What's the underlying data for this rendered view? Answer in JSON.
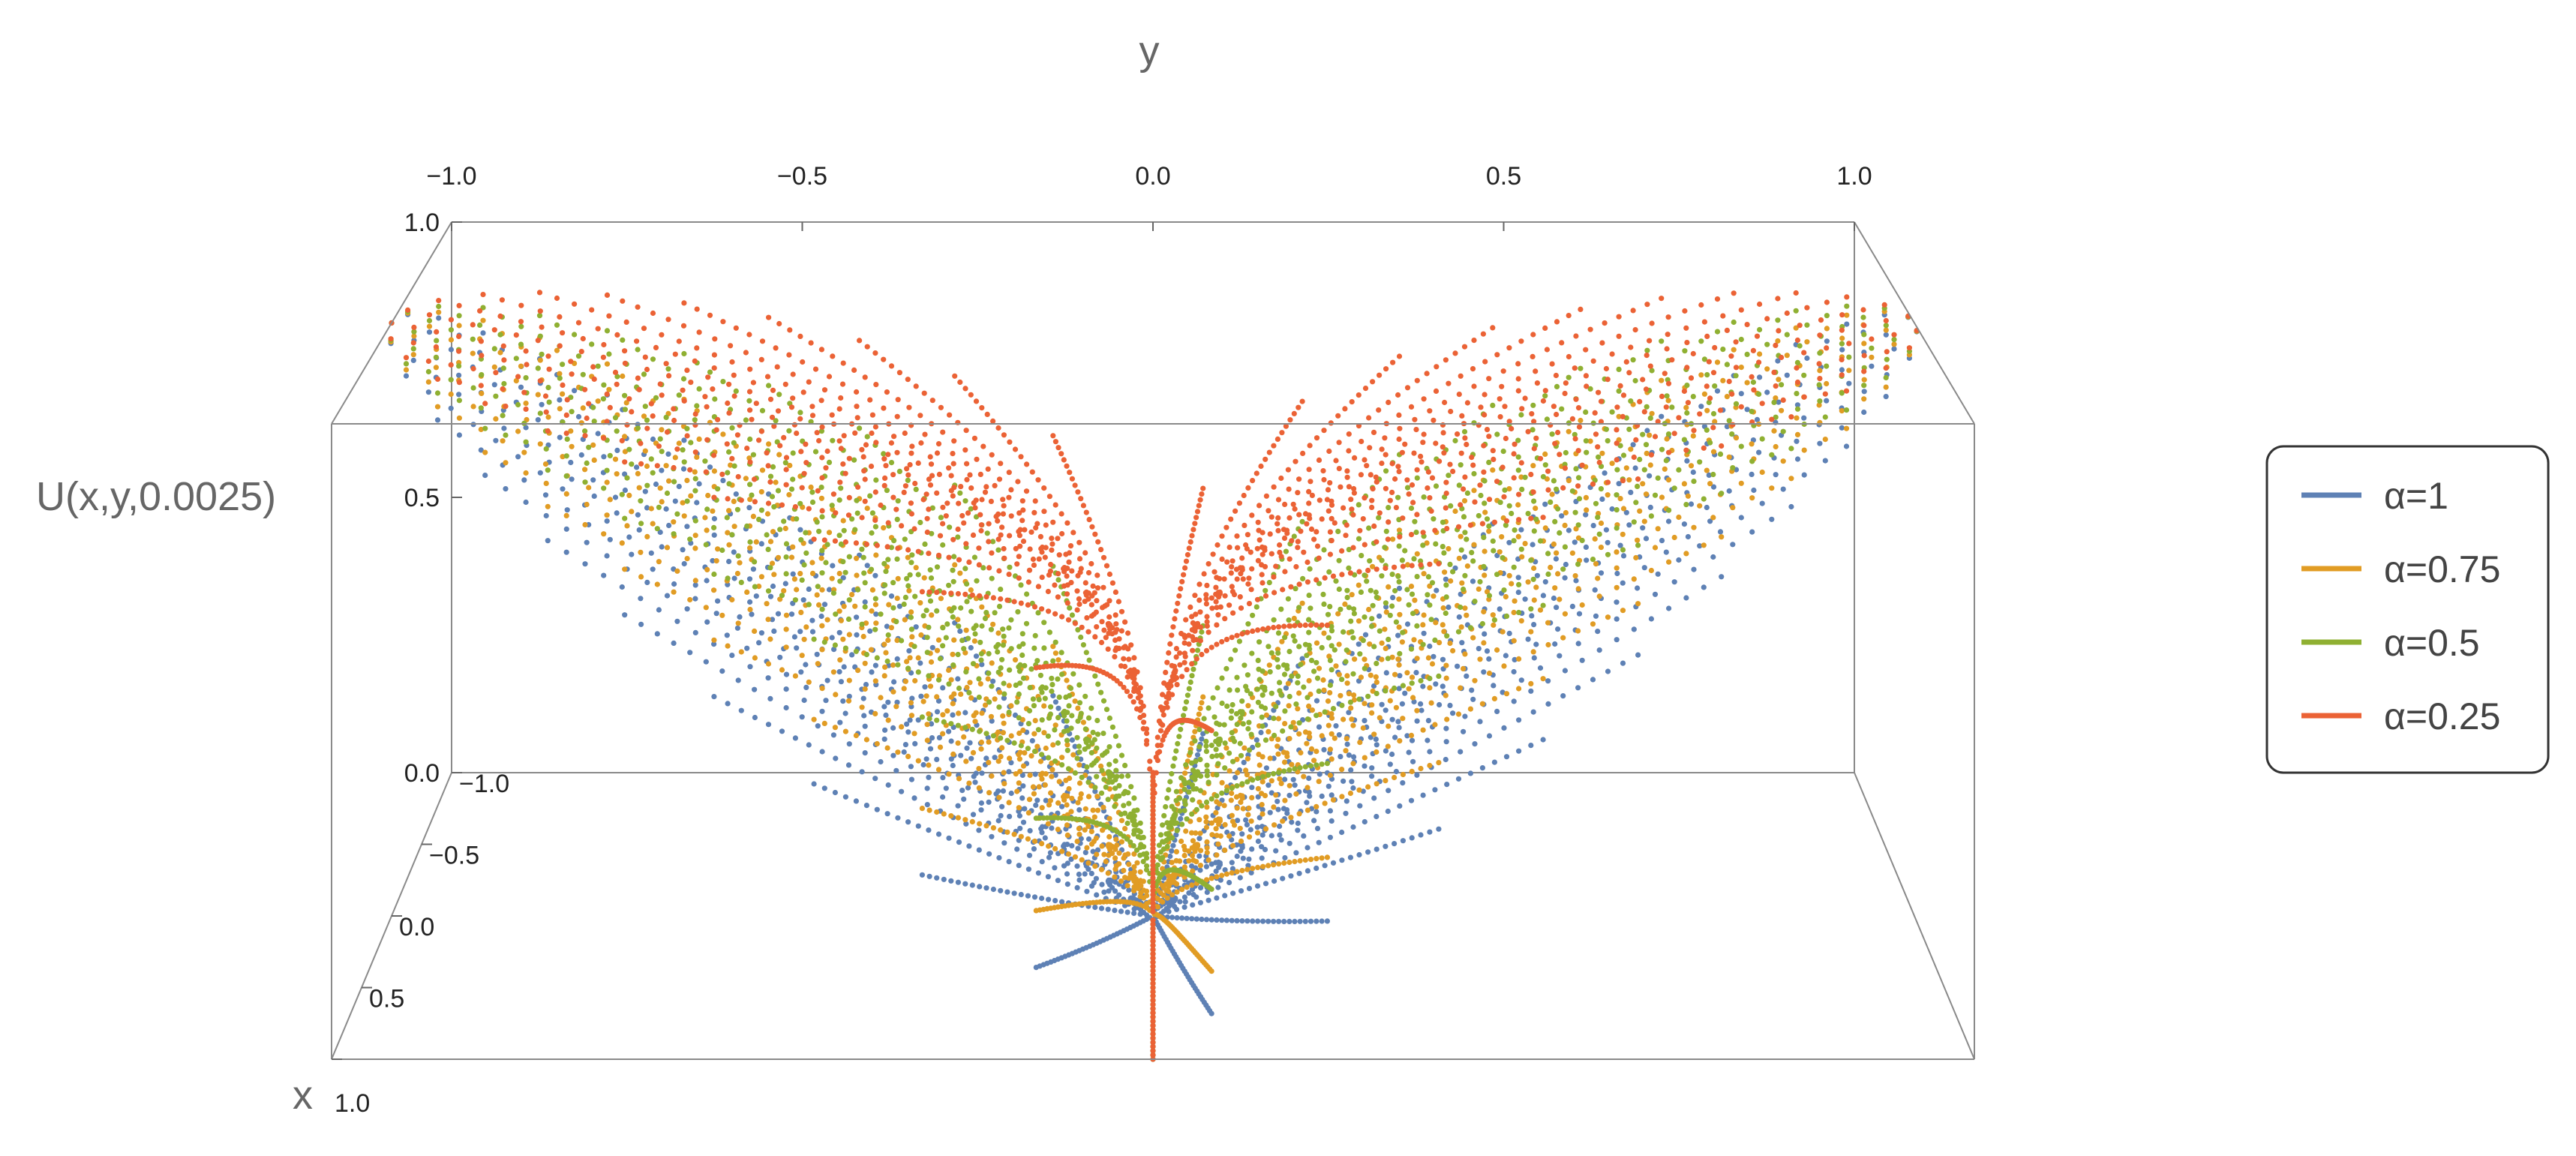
{
  "chart_data": {
    "type": "scatter",
    "subtype": "3d-point-cloud",
    "title": "",
    "xlabel": "x",
    "ylabel": "y",
    "zlabel": "U(x,y,0.0025)",
    "xlim": [
      -1.0,
      1.0
    ],
    "ylim": [
      -1.0,
      1.0
    ],
    "zlim": [
      0.0,
      1.0
    ],
    "y_ticks": [
      {
        "value": -1.0,
        "label": "−1.0"
      },
      {
        "value": -0.5,
        "label": "−0.5"
      },
      {
        "value": 0.0,
        "label": "0.0"
      },
      {
        "value": 0.5,
        "label": "0.5"
      },
      {
        "value": 1.0,
        "label": "1.0"
      }
    ],
    "z_ticks": [
      {
        "value": 1.0,
        "label": "1.0"
      },
      {
        "value": 0.5,
        "label": "0.5"
      },
      {
        "value": 0.0,
        "label": "0.0"
      }
    ],
    "x_ticks": [
      {
        "value": -1.0,
        "label": "−1.0"
      },
      {
        "value": -0.5,
        "label": "−0.5"
      },
      {
        "value": 0.0,
        "label": "0.0"
      },
      {
        "value": 0.5,
        "label": "0.5"
      },
      {
        "value": 1.0,
        "label": "1.0"
      }
    ],
    "grid": false,
    "legend_position": "right",
    "surface_model": "U = |y|^alpha sampled along rays through the origin; points drawn per series",
    "series": [
      {
        "name": "α=1",
        "alpha": 1.0,
        "color": "#5e81b5"
      },
      {
        "name": "α=0.75",
        "alpha": 0.75,
        "color": "#e19c24"
      },
      {
        "name": "α=0.5",
        "alpha": 0.5,
        "color": "#8fb032"
      },
      {
        "name": "α=0.25",
        "alpha": 0.25,
        "color": "#eb6235"
      }
    ]
  },
  "legend": {
    "items": [
      {
        "label": "α=1",
        "color": "#5e81b5"
      },
      {
        "label": "α=0.75",
        "color": "#e19c24"
      },
      {
        "label": "α=0.5",
        "color": "#8fb032"
      },
      {
        "label": "α=0.25",
        "color": "#eb6235"
      }
    ]
  }
}
